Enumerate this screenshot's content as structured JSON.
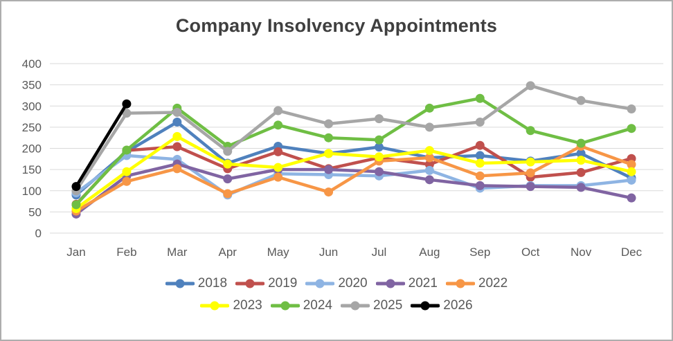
{
  "chart_data": {
    "type": "line",
    "title": "Company Insolvency Appointments",
    "categories": [
      "Jan",
      "Feb",
      "Mar",
      "Apr",
      "May",
      "Jun",
      "Jul",
      "Aug",
      "Sep",
      "Oct",
      "Nov",
      "Dec"
    ],
    "xlabel": "",
    "ylabel": "",
    "ylim": [
      0,
      400
    ],
    "ytick_step": 50,
    "yticks": [
      0,
      50,
      100,
      150,
      200,
      250,
      300,
      350,
      400
    ],
    "grid": "horizontal",
    "legend_position": "bottom",
    "legend_rows": [
      [
        "2018",
        "2019",
        "2020",
        "2021",
        "2022"
      ],
      [
        "2023",
        "2024",
        "2025",
        "2026"
      ]
    ],
    "series": [
      {
        "name": "2018",
        "color": "#4F81BD",
        "values": [
          90,
          192,
          262,
          165,
          205,
          188,
          203,
          178,
          183,
          170,
          188,
          130
        ]
      },
      {
        "name": "2019",
        "color": "#C0504D",
        "values": [
          68,
          195,
          204,
          152,
          192,
          152,
          178,
          162,
          207,
          132,
          143,
          176
        ]
      },
      {
        "name": "2020",
        "color": "#8EB4E3",
        "values": [
          95,
          183,
          174,
          90,
          140,
          138,
          135,
          148,
          106,
          112,
          112,
          125
        ]
      },
      {
        "name": "2021",
        "color": "#8064A2",
        "values": [
          45,
          135,
          163,
          128,
          150,
          150,
          145,
          126,
          112,
          110,
          108,
          83
        ]
      },
      {
        "name": "2022",
        "color": "#F79646",
        "values": [
          52,
          122,
          152,
          93,
          132,
          97,
          170,
          178,
          135,
          142,
          205,
          162
        ]
      },
      {
        "name": "2023",
        "color": "#FFFF00",
        "values": [
          58,
          145,
          228,
          163,
          155,
          188,
          180,
          195,
          165,
          168,
          172,
          145
        ]
      },
      {
        "name": "2024",
        "color": "#6FBE44",
        "values": [
          67,
          196,
          295,
          205,
          255,
          225,
          220,
          295,
          318,
          242,
          212,
          247
        ]
      },
      {
        "name": "2025",
        "color": "#A6A6A6",
        "values": [
          100,
          283,
          285,
          193,
          289,
          258,
          270,
          250,
          262,
          348,
          313,
          293
        ]
      },
      {
        "name": "2026",
        "color": "#000000",
        "values": [
          110,
          305,
          null,
          null,
          null,
          null,
          null,
          null,
          null,
          null,
          null,
          null
        ]
      }
    ],
    "style": {
      "grid_color": "#D9D9D9",
      "axis_text_color": "#595959",
      "title_color": "#3F3F3F",
      "frame_border_color": "#ADADAD"
    }
  }
}
